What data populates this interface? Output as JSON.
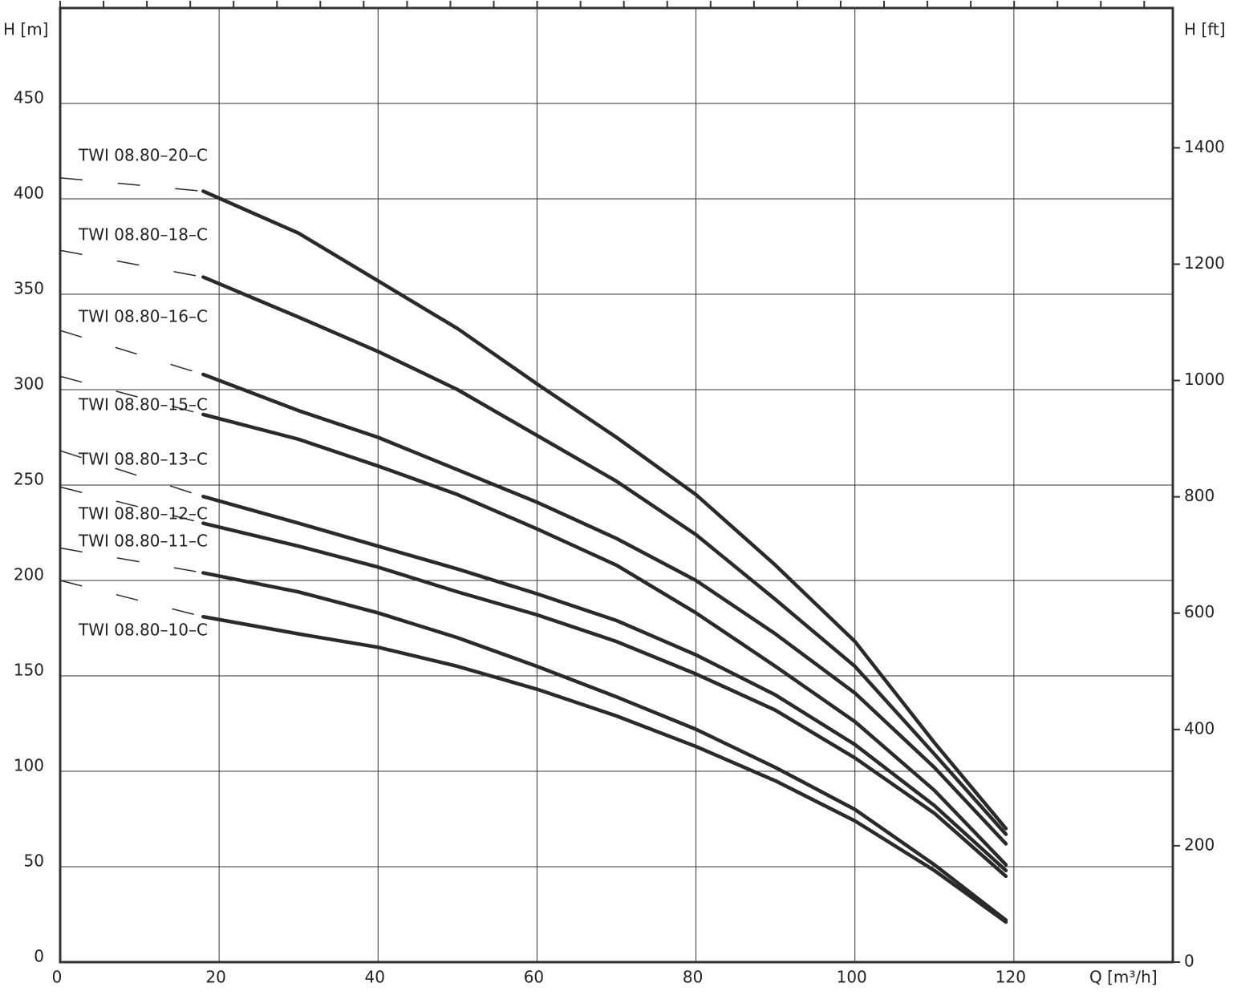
{
  "chart_data": {
    "type": "line",
    "y_label": "H [m]",
    "y2_label": "H [ft]",
    "x_label": "Q [m³/h]",
    "xlim": [
      0,
      140
    ],
    "xticks": [
      0,
      20,
      40,
      60,
      80,
      100,
      120
    ],
    "ylim": [
      0,
      500
    ],
    "yticks": [
      0,
      50,
      100,
      150,
      200,
      250,
      300,
      350,
      400,
      450
    ],
    "y2lim": [
      0,
      1640.4
    ],
    "y2ticks": [
      0,
      200,
      400,
      600,
      800,
      1000,
      1200,
      1400
    ],
    "x2lim": [
      0,
      513.2
    ],
    "x2ticks": [
      0,
      20,
      40,
      60,
      80,
      100,
      120,
      140,
      160,
      180,
      200,
      220,
      240,
      260,
      280,
      300,
      320,
      340,
      360,
      380,
      400,
      420,
      440,
      460,
      480,
      500
    ],
    "grid": true,
    "x": [
      0,
      18,
      30,
      40,
      50,
      60,
      70,
      80,
      90,
      100,
      110,
      119
    ],
    "series": [
      {
        "name": "TWI 08.80–20–C",
        "color": "#2a2a2a",
        "values": [
          411,
          404,
          382,
          357,
          332,
          303,
          275,
          245,
          208,
          168,
          115,
          70
        ]
      },
      {
        "name": "TWI 08.80–18–C",
        "color": "#2a2a2a",
        "values": [
          373,
          359,
          338,
          320,
          300,
          276,
          252,
          224,
          190,
          155,
          109,
          67
        ]
      },
      {
        "name": "TWI 08.80–16–C",
        "color": "#2a2a2a",
        "values": [
          331,
          308,
          289,
          275,
          258,
          241,
          222,
          200,
          172,
          141,
          102,
          62
        ]
      },
      {
        "name": "TWI 08.80–15–C",
        "color": "#2a2a2a",
        "values": [
          307,
          287,
          274,
          260,
          245,
          227,
          208,
          183,
          155,
          126,
          90,
          51
        ]
      },
      {
        "name": "TWI 08.80–13–C",
        "color": "#2a2a2a",
        "values": [
          268,
          244,
          230,
          218,
          206,
          193,
          179,
          161,
          140,
          114,
          82,
          48
        ]
      },
      {
        "name": "TWI 08.80–12–C",
        "color": "#2a2a2a",
        "values": [
          249,
          230,
          218,
          207,
          194,
          182,
          168,
          151,
          132,
          107,
          78,
          45
        ]
      },
      {
        "name": "TWI 08.80–11–C",
        "color": "#2a2a2a",
        "values": [
          217,
          204,
          194,
          183,
          170,
          155,
          139,
          122,
          102,
          80,
          51,
          22
        ]
      },
      {
        "name": "TWI 08.80–10–C",
        "color": "#2a2a2a",
        "values": [
          200,
          181,
          172,
          165,
          155,
          143,
          129,
          113,
          95,
          74,
          48,
          21
        ]
      }
    ]
  }
}
